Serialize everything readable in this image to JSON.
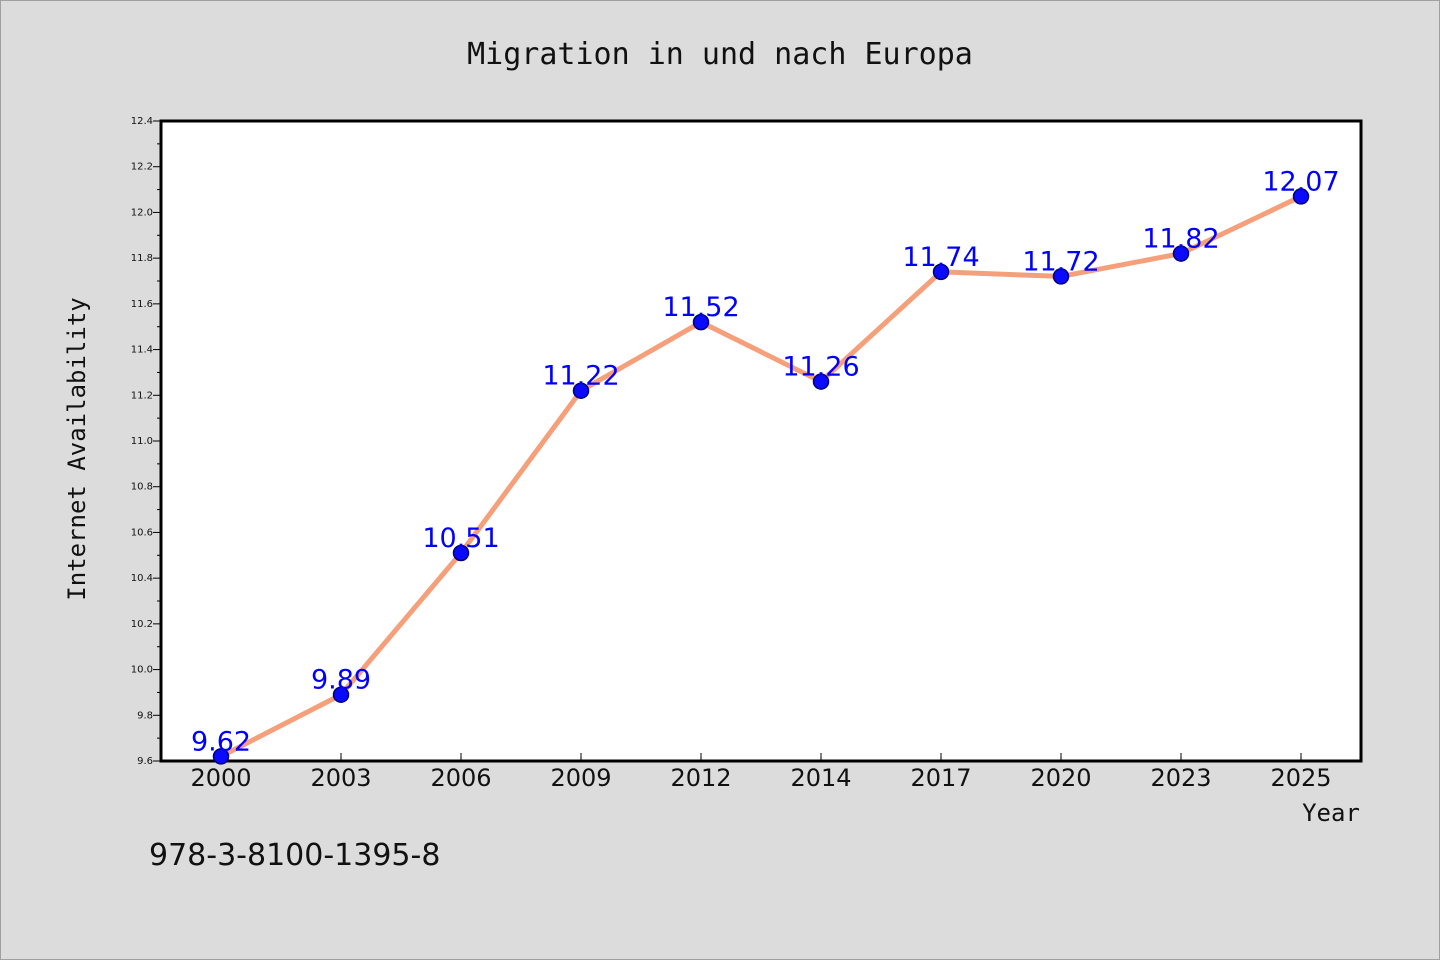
{
  "chart_data": {
    "type": "line",
    "title": "Migration in und nach Europa",
    "xlabel": "Year",
    "ylabel": "Internet Availability",
    "categories": [
      "2000",
      "2003",
      "2006",
      "2009",
      "2012",
      "2014",
      "2017",
      "2020",
      "2023",
      "2025"
    ],
    "series": [
      {
        "values": [
          9.62,
          9.89,
          10.51,
          11.22,
          11.52,
          11.26,
          11.74,
          11.72,
          11.82,
          12.07
        ],
        "value_labels": [
          "9.62",
          "9.89",
          "10.51",
          "11.22",
          "11.52",
          "11.26",
          "11.74",
          "11.72",
          "11.82",
          "12.07"
        ]
      }
    ],
    "ylim": [
      9.6,
      12.4
    ],
    "yticks": [
      "9.6",
      "9.8",
      "10.0",
      "10.2",
      "10.4",
      "10.6",
      "10.8",
      "11.0",
      "11.2",
      "11.4",
      "11.6",
      "11.8",
      "12.0",
      "12.2",
      "12.4"
    ],
    "grid": false,
    "legend": "none",
    "colors": {
      "line": "#f5a07a",
      "marker": "#0a0aff",
      "marker_edge": "#00007a",
      "data_label": "#0000ff",
      "background": "#dcdcdc",
      "plot_background": "#ffffff"
    }
  },
  "footer": {
    "isbn": "978-3-8100-1395-8"
  }
}
